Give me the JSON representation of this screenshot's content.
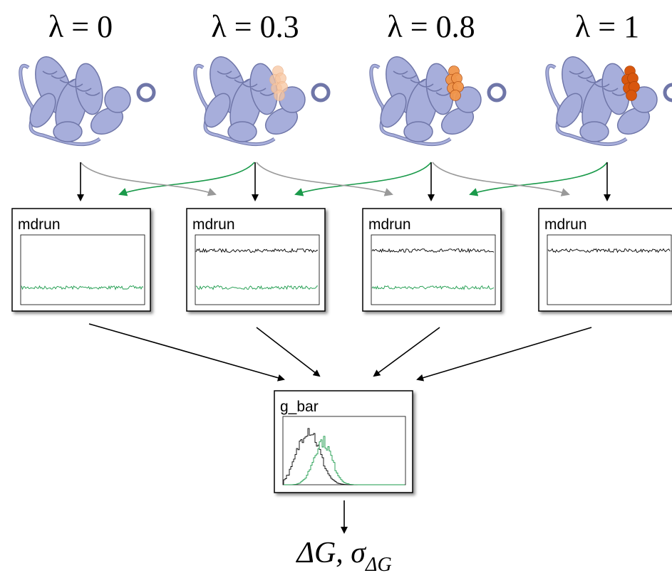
{
  "lambdas": [
    "λ = 0",
    "λ = 0.3",
    "λ = 0.8",
    "λ = 1"
  ],
  "runs": [
    "mdrun",
    "mdrun",
    "mdrun",
    "mdrun"
  ],
  "analysis": "g_bar",
  "result": {
    "main": "ΔG, σ",
    "subscript": "ΔG"
  }
}
